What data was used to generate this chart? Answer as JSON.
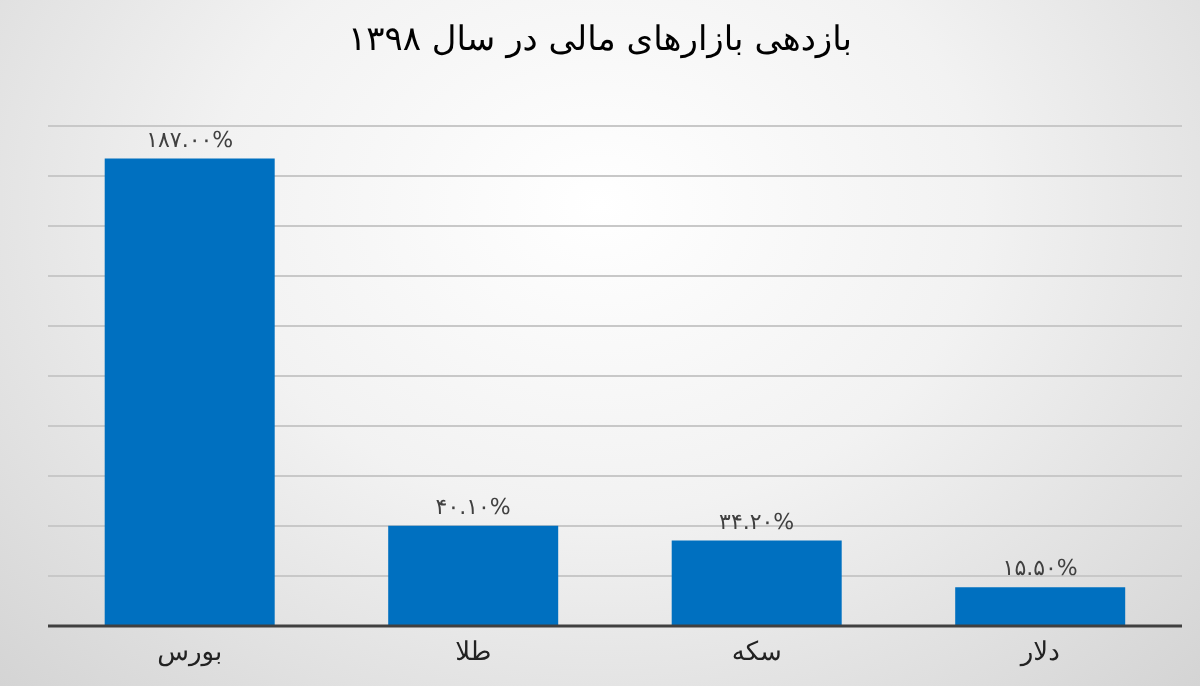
{
  "chart_data": {
    "type": "bar",
    "title": "بازدهی بازارهای مالی در سال ۱۳۹۸",
    "categories": [
      "بورس",
      "طلا",
      "سکه",
      "دلار"
    ],
    "values": [
      187,
      40.1,
      34.2,
      15.5
    ],
    "value_labels": [
      "۱۸۷.۰۰%",
      "۴۰.۱۰%",
      "۳۴.۲۰%",
      "۱۵.۵۰%"
    ],
    "color": "#0070c0",
    "ylim": [
      0,
      200
    ],
    "yticks": [
      {
        "value": 0,
        "label": null
      },
      {
        "value": 20,
        "label": null
      },
      {
        "value": 40,
        "label": null
      },
      {
        "value": 60,
        "label": null
      },
      {
        "value": 80,
        "label": null
      },
      {
        "value": 100,
        "label": null
      },
      {
        "value": 120,
        "label": null
      },
      {
        "value": 140,
        "label": null
      },
      {
        "value": 160,
        "label": null
      },
      {
        "value": 180,
        "label": null
      },
      {
        "value": 200,
        "label": null
      }
    ],
    "tick_labels": "x",
    "grid": "y",
    "legend": false
  }
}
